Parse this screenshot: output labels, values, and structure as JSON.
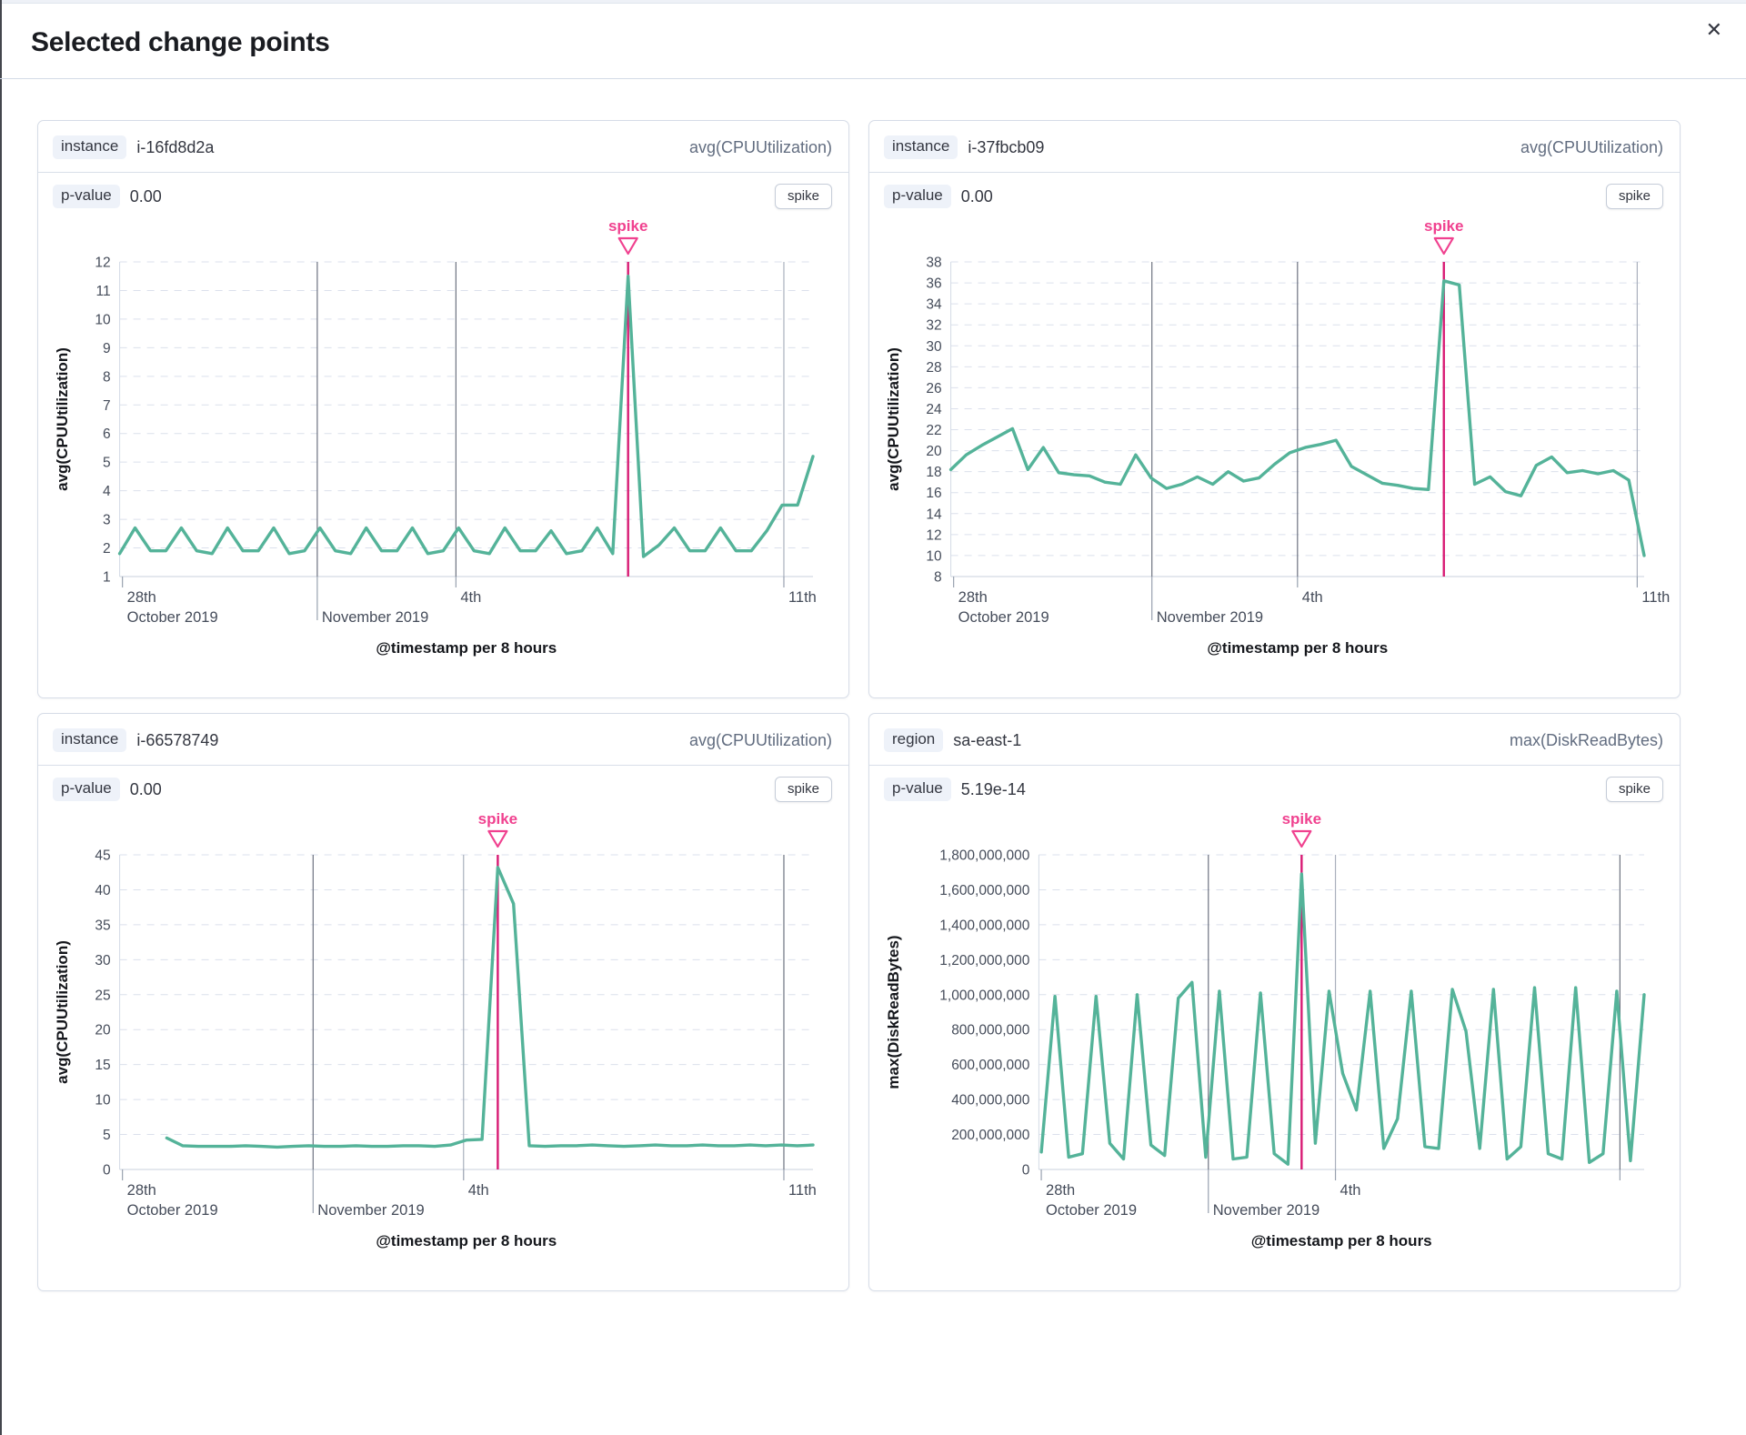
{
  "modal": {
    "title": "Selected change points",
    "close_icon": "✕"
  },
  "colors": {
    "series_green": "#54b399",
    "spike_line": "#d81b74",
    "spike_label": "#f0418f",
    "grid_dash": "#dbe0ec",
    "axis_line": "#d3dae6",
    "baseline": "#c9d0dc",
    "vline_strong": "#6d7280",
    "vline_light": "#aab0bd",
    "tick": "#98a1af"
  },
  "panels": [
    {
      "key_label": "instance",
      "key_value": "i-16fd8d2a",
      "metric": "avg(CPUUtilization)",
      "p_label": "p-value",
      "p_value": "0.00",
      "action_label": "spike"
    },
    {
      "key_label": "instance",
      "key_value": "i-37fbcb09",
      "metric": "avg(CPUUtilization)",
      "p_label": "p-value",
      "p_value": "0.00",
      "action_label": "spike"
    },
    {
      "key_label": "instance",
      "key_value": "i-66578749",
      "metric": "avg(CPUUtilization)",
      "p_label": "p-value",
      "p_value": "0.00",
      "action_label": "spike"
    },
    {
      "key_label": "region",
      "key_value": "sa-east-1",
      "metric": "max(DiskReadBytes)",
      "p_label": "p-value",
      "p_value": "5.19e-14",
      "action_label": "spike"
    }
  ],
  "chart_data": [
    {
      "type": "line",
      "title": "instance i-16fd8d2a",
      "ylabel": "avg(CPUUtilization)",
      "xlabel": "@timestamp per 8 hours",
      "y_min": 1,
      "y_max": 12,
      "y_step": 1,
      "y_tick_format": "plain",
      "grid": true,
      "x_start": 0.0,
      "x_end": 1.0,
      "x_marks": [
        {
          "pos": 0.004,
          "line": false,
          "strong": false,
          "long_tick": false,
          "line1": "28th",
          "line2": "October 2019"
        },
        {
          "pos": 0.285,
          "line": true,
          "strong": true,
          "long_tick": true,
          "line1": "",
          "line2": "November 2019"
        },
        {
          "pos": 0.485,
          "line": true,
          "strong": true,
          "long_tick": false,
          "line1": "4th",
          "line2": ""
        },
        {
          "pos": 0.958,
          "line": true,
          "strong": false,
          "long_tick": false,
          "line1": "11th",
          "line2": ""
        }
      ],
      "annotation": {
        "label": "spike",
        "type": "spike"
      },
      "spike_index": 33,
      "values": [
        1.8,
        2.7,
        1.9,
        1.9,
        2.7,
        1.9,
        1.8,
        2.7,
        1.9,
        1.9,
        2.7,
        1.8,
        1.9,
        2.7,
        1.9,
        1.8,
        2.7,
        1.9,
        1.9,
        2.7,
        1.8,
        1.9,
        2.7,
        1.9,
        1.8,
        2.7,
        1.9,
        1.9,
        2.6,
        1.8,
        1.9,
        2.7,
        1.8,
        11.5,
        1.7,
        2.1,
        2.7,
        1.9,
        1.9,
        2.7,
        1.9,
        1.9,
        2.6,
        3.5,
        3.5,
        5.2
      ]
    },
    {
      "type": "line",
      "title": "instance i-37fbcb09",
      "ylabel": "avg(CPUUtilization)",
      "xlabel": "@timestamp per 8 hours",
      "y_min": 8,
      "y_max": 38,
      "y_step": 2,
      "y_tick_format": "plain",
      "grid": true,
      "x_start": 0.0,
      "x_end": 1.0,
      "x_marks": [
        {
          "pos": 0.004,
          "line": false,
          "strong": false,
          "long_tick": false,
          "line1": "28th",
          "line2": "October 2019"
        },
        {
          "pos": 0.29,
          "line": true,
          "strong": true,
          "long_tick": true,
          "line1": "",
          "line2": "November 2019"
        },
        {
          "pos": 0.5,
          "line": true,
          "strong": true,
          "long_tick": false,
          "line1": "4th",
          "line2": ""
        },
        {
          "pos": 0.99,
          "line": true,
          "strong": false,
          "long_tick": false,
          "line1": "11th",
          "line2": ""
        }
      ],
      "annotation": {
        "label": "spike",
        "type": "spike"
      },
      "spike_index": 32,
      "values": [
        18.2,
        19.6,
        20.5,
        21.3,
        22.1,
        18.2,
        20.3,
        17.9,
        17.7,
        17.6,
        17.0,
        16.8,
        19.6,
        17.4,
        16.4,
        16.8,
        17.5,
        16.8,
        18.0,
        17.1,
        17.4,
        18.7,
        19.8,
        20.3,
        20.6,
        21.0,
        18.5,
        17.7,
        16.9,
        16.7,
        16.4,
        16.3,
        36.2,
        35.8,
        16.8,
        17.5,
        16.1,
        15.7,
        18.6,
        19.4,
        17.9,
        18.1,
        17.8,
        18.1,
        17.2,
        10.0
      ]
    },
    {
      "type": "line",
      "title": "instance i-66578749",
      "ylabel": "avg(CPUUtilization)",
      "xlabel": "@timestamp per 8 hours",
      "y_min": 0,
      "y_max": 45,
      "y_step": 5,
      "y_tick_format": "plain",
      "grid": true,
      "x_start": 0.068,
      "x_end": 1.0,
      "x_marks": [
        {
          "pos": 0.004,
          "line": false,
          "strong": false,
          "long_tick": false,
          "line1": "28th",
          "line2": "October 2019"
        },
        {
          "pos": 0.279,
          "line": true,
          "strong": true,
          "long_tick": true,
          "line1": "",
          "line2": "November 2019"
        },
        {
          "pos": 0.496,
          "line": true,
          "strong": false,
          "long_tick": false,
          "line1": "4th",
          "line2": ""
        },
        {
          "pos": 0.958,
          "line": true,
          "strong": true,
          "long_tick": false,
          "line1": "11th",
          "line2": ""
        }
      ],
      "annotation": {
        "label": "spike",
        "type": "spike"
      },
      "spike_index": 21,
      "values": [
        4.5,
        3.4,
        3.3,
        3.3,
        3.3,
        3.4,
        3.3,
        3.2,
        3.3,
        3.4,
        3.3,
        3.3,
        3.4,
        3.3,
        3.3,
        3.4,
        3.4,
        3.3,
        3.5,
        4.2,
        4.3,
        43.2,
        38.0,
        3.4,
        3.3,
        3.4,
        3.4,
        3.5,
        3.4,
        3.3,
        3.4,
        3.5,
        3.4,
        3.4,
        3.5,
        3.4,
        3.4,
        3.5,
        3.4,
        3.5,
        3.4,
        3.5
      ]
    },
    {
      "type": "line",
      "title": "region sa-east-1",
      "ylabel": "max(DiskReadBytes)",
      "xlabel": "@timestamp per 8 hours",
      "y_min": 0,
      "y_max": 1800000000,
      "y_step": 200000000,
      "y_tick_format": "comma",
      "grid": true,
      "x_start": 0.004,
      "x_end": 1.0,
      "x_marks": [
        {
          "pos": 0.004,
          "line": false,
          "strong": false,
          "long_tick": false,
          "line1": "28th",
          "line2": "October 2019"
        },
        {
          "pos": 0.28,
          "line": true,
          "strong": true,
          "long_tick": true,
          "line1": "",
          "line2": "November 2019"
        },
        {
          "pos": 0.49,
          "line": true,
          "strong": false,
          "long_tick": false,
          "line1": "4th",
          "line2": ""
        },
        {
          "pos": 0.96,
          "line": true,
          "strong": true,
          "long_tick": false,
          "line1": "",
          "line2": ""
        }
      ],
      "annotation": {
        "label": "spike",
        "type": "spike"
      },
      "spike_index": 19,
      "values": [
        100000000,
        990000000,
        70000000,
        90000000,
        990000000,
        150000000,
        60000000,
        1000000000,
        140000000,
        80000000,
        980000000,
        1070000000,
        70000000,
        1020000000,
        60000000,
        70000000,
        1010000000,
        90000000,
        30000000,
        1690000000,
        150000000,
        1020000000,
        550000000,
        340000000,
        1020000000,
        120000000,
        290000000,
        1020000000,
        130000000,
        120000000,
        1030000000,
        790000000,
        120000000,
        1030000000,
        60000000,
        130000000,
        1040000000,
        90000000,
        60000000,
        1040000000,
        40000000,
        90000000,
        1020000000,
        50000000,
        1000000000
      ]
    }
  ]
}
